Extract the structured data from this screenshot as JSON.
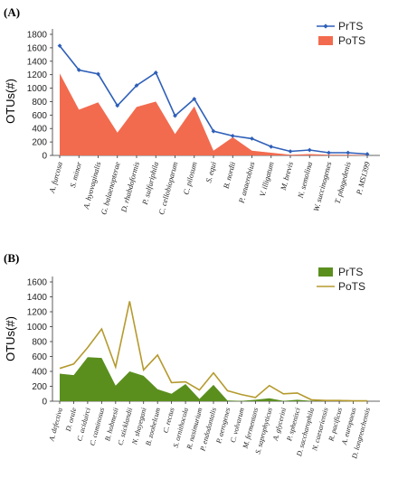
{
  "chart_data": [
    {
      "panel_label": "(A)",
      "type": "area",
      "ylabel": "OTUs(#)",
      "ylim": [
        0,
        1800
      ],
      "yticks": [
        0,
        200,
        400,
        600,
        800,
        1000,
        1200,
        1400,
        1600,
        1800
      ],
      "grid": false,
      "legend_position": "top-right",
      "categories": [
        "A. furcosa",
        "S. minor",
        "A. hyovaginalis",
        "G. balaenopterae",
        "D. rhabdoformis",
        "P. sulfuriphila",
        "C. cellobioparum",
        "C. pilosum",
        "S. equi",
        "B. nordii",
        "P. anaerobius",
        "V. illigatum",
        "M. brevis",
        "N. semolina",
        "W. succinogenes",
        "T. phagedenis",
        "P. MS1399"
      ],
      "series": [
        {
          "name": "PrTS",
          "type": "line",
          "color": "#2e5fb8",
          "marker": "diamond",
          "values": [
            1630,
            1270,
            1210,
            740,
            1040,
            1230,
            590,
            840,
            360,
            290,
            250,
            130,
            60,
            80,
            40,
            40,
            20
          ]
        },
        {
          "name": "PoTS",
          "type": "area",
          "color": "#f26b4f",
          "values": [
            1220,
            680,
            790,
            340,
            720,
            800,
            320,
            730,
            70,
            270,
            70,
            40,
            10,
            20,
            10,
            10,
            5
          ]
        }
      ]
    },
    {
      "panel_label": "(B)",
      "type": "area",
      "ylabel": "OTUs(#)",
      "ylim": [
        0,
        1600
      ],
      "yticks": [
        0,
        200,
        400,
        600,
        800,
        1000,
        1200,
        1400,
        1600
      ],
      "grid": false,
      "legend_position": "top-right",
      "categories": [
        "A. defectiva",
        "D. orale",
        "C. aciduirci",
        "C. caminosus",
        "B. hobmesii",
        "C. sticklandii",
        "N. shayegani",
        "B. zoohelcum",
        "C. rectus",
        "S. ornithocola",
        "R. nasimurium",
        "P. endodontalis",
        "P. aerogenes",
        "C. volvarum",
        "M. fermentans",
        "S. saprophyticus",
        "A. glycerini",
        "P. sphenisci",
        "D. saccharophila",
        "N. caesariensis",
        "R. pacificus",
        "A. europaeus",
        "D. longreachensis"
      ],
      "series": [
        {
          "name": "PrTS",
          "type": "area",
          "color": "#5a8f1e",
          "values": [
            370,
            350,
            590,
            580,
            210,
            400,
            340,
            160,
            100,
            230,
            30,
            220,
            10,
            5,
            20,
            40,
            5,
            20,
            5,
            5,
            5,
            5,
            5
          ]
        },
        {
          "name": "PoTS",
          "type": "line",
          "color": "#b59a2e",
          "values": [
            440,
            500,
            720,
            970,
            460,
            1340,
            420,
            620,
            250,
            260,
            150,
            380,
            140,
            90,
            50,
            210,
            100,
            110,
            20,
            10,
            10,
            5,
            5
          ]
        }
      ]
    }
  ]
}
